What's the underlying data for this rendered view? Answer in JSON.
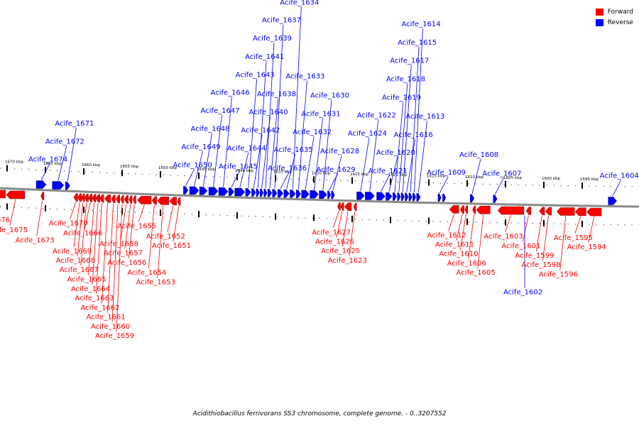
{
  "legend": [
    {
      "label": "Forward",
      "color": "#ff0000"
    },
    {
      "label": "Reverse",
      "color": "#0000ff"
    }
  ],
  "colors": {
    "forward": "#ff0000",
    "reverse": "#0000ff",
    "backbone": "#8a8a8a"
  },
  "caption": "Acidithiobacillus ferrivorans SS3 chromosome, complete genome. - 0..3207552",
  "ruler": [
    {
      "label": "1670 kbp",
      "pos": 1670
    },
    {
      "label": "1665 kbp",
      "pos": 1665
    },
    {
      "label": "1660 kbp",
      "pos": 1660
    },
    {
      "label": "1655 kbp",
      "pos": 1655
    },
    {
      "label": "1650 kbp",
      "pos": 1650
    },
    {
      "label": "1645 kbp",
      "pos": 1645
    },
    {
      "label": "1640 kbp",
      "pos": 1640
    },
    {
      "label": "1635 kbp",
      "pos": 1635
    },
    {
      "label": "1630 kbp",
      "pos": 1630
    },
    {
      "label": "1625 kbp",
      "pos": 1625
    },
    {
      "label": "1620 kbp",
      "pos": 1620
    },
    {
      "label": "1615 kbp",
      "pos": 1615
    },
    {
      "label": "1610 kbp",
      "pos": 1610
    },
    {
      "label": "1605 kbp",
      "pos": 1605
    },
    {
      "label": "1600 kbp",
      "pos": 1600
    },
    {
      "label": "1595 kbp",
      "pos": 1595
    }
  ],
  "reverse_genes": [
    {
      "label": "Acife_1674",
      "start": 1666.2,
      "end": 1664.9
    },
    {
      "label": "Acife_1672",
      "start": 1664.1,
      "end": 1662.6
    },
    {
      "label": "Acife_1671",
      "start": 1662.4,
      "end": 1661.8
    },
    {
      "label": "Acife_1650",
      "start": 1647.0,
      "end": 1646.4
    },
    {
      "label": "Acife_1649",
      "start": 1646.2,
      "end": 1645.0
    },
    {
      "label": "Acife_1648",
      "start": 1644.9,
      "end": 1643.9
    },
    {
      "label": "Acife_1647",
      "start": 1643.7,
      "end": 1642.5
    },
    {
      "label": "Acife_1646",
      "start": 1642.4,
      "end": 1641.2
    },
    {
      "label": "Acife_1645",
      "start": 1641.1,
      "end": 1640.4
    },
    {
      "label": "Acife_1644",
      "start": 1640.3,
      "end": 1639.0
    },
    {
      "label": "Acife_1643",
      "start": 1638.9,
      "end": 1638.2
    },
    {
      "label": "Acife_1642",
      "start": 1638.1,
      "end": 1637.6
    },
    {
      "label": "Acife_1641",
      "start": 1637.5,
      "end": 1637.1
    },
    {
      "label": "Acife_1640",
      "start": 1637.0,
      "end": 1636.6
    },
    {
      "label": "Acife_1639",
      "start": 1636.5,
      "end": 1636.1
    },
    {
      "label": "Acife_1638",
      "start": 1636.0,
      "end": 1635.5
    },
    {
      "label": "Acife_1637",
      "start": 1635.4,
      "end": 1634.8
    },
    {
      "label": "Acife_1636",
      "start": 1634.7,
      "end": 1634.0
    },
    {
      "label": "Acife_1635",
      "start": 1633.9,
      "end": 1633.2
    },
    {
      "label": "Acife_1634",
      "start": 1633.1,
      "end": 1632.4
    },
    {
      "label": "Acife_1633",
      "start": 1632.3,
      "end": 1631.7
    },
    {
      "label": "Acife_1632",
      "start": 1631.6,
      "end": 1630.6
    },
    {
      "label": "Acife_1631",
      "start": 1630.5,
      "end": 1629.4
    },
    {
      "label": "Acife_1630",
      "start": 1629.3,
      "end": 1628.3
    },
    {
      "label": "Acife_1629",
      "start": 1628.2,
      "end": 1627.8
    },
    {
      "label": "Acife_1628",
      "start": 1627.7,
      "end": 1627.3
    },
    {
      "label": "Acife_1624",
      "start": 1624.4,
      "end": 1623.4
    },
    {
      "label": "Acife_1622",
      "start": 1623.3,
      "end": 1622.1
    },
    {
      "label": "Acife_1621",
      "start": 1621.8,
      "end": 1620.7
    },
    {
      "label": "Acife_1620",
      "start": 1620.6,
      "end": 1619.8
    },
    {
      "label": "Acife_1619",
      "start": 1619.7,
      "end": 1619.2
    },
    {
      "label": "Acife_1618",
      "start": 1619.1,
      "end": 1618.7
    },
    {
      "label": "Acife_1617",
      "start": 1618.6,
      "end": 1618.2
    },
    {
      "label": "Acife_1616",
      "start": 1618.1,
      "end": 1617.7
    },
    {
      "label": "Acife_1615",
      "start": 1617.6,
      "end": 1617.2
    },
    {
      "label": "Acife_1614",
      "start": 1617.1,
      "end": 1616.7
    },
    {
      "label": "Acife_1613",
      "start": 1616.6,
      "end": 1616.1
    },
    {
      "label": "Acife_1609",
      "start": 1613.8,
      "end": 1613.4
    },
    {
      "label": "",
      "start": 1613.2,
      "end": 1612.8
    },
    {
      "label": "Acife_1608",
      "start": 1609.6,
      "end": 1609.1
    },
    {
      "label": "Acife_1607",
      "start": 1606.6,
      "end": 1606.1
    },
    {
      "label": "Acife_1604",
      "start": 1591.6,
      "end": 1590.5
    }
  ],
  "forward_genes": [
    {
      "label": "Acife_1676",
      "start": 1672.2,
      "end": 1670.2
    },
    {
      "label": "Acife_1675",
      "start": 1670.1,
      "end": 1667.7
    },
    {
      "label": "Acife_1673",
      "start": 1665.6,
      "end": 1665.2
    },
    {
      "label": "Acife_1670",
      "start": 1661.3,
      "end": 1660.8
    },
    {
      "label": "Acife_1669",
      "start": 1660.8,
      "end": 1660.3
    },
    {
      "label": "Acife_1668",
      "start": 1660.3,
      "end": 1659.9
    },
    {
      "label": "Acife_1667",
      "start": 1659.9,
      "end": 1659.4
    },
    {
      "label": "Acife_1666",
      "start": 1659.4,
      "end": 1658.9
    },
    {
      "label": "Acife_1665",
      "start": 1658.9,
      "end": 1658.4
    },
    {
      "label": "Acife_1664",
      "start": 1658.4,
      "end": 1657.9
    },
    {
      "label": "Acife_1663",
      "start": 1657.9,
      "end": 1657.4
    },
    {
      "label": "Acife_1662",
      "start": 1657.3,
      "end": 1656.5
    },
    {
      "label": "Acife_1661",
      "start": 1656.4,
      "end": 1655.9
    },
    {
      "label": "Acife_1660",
      "start": 1655.8,
      "end": 1655.3
    },
    {
      "label": "Acife_1659",
      "start": 1655.2,
      "end": 1654.8
    },
    {
      "label": "Acife_1658",
      "start": 1654.7,
      "end": 1654.2
    },
    {
      "label": "Acife_1657",
      "start": 1654.1,
      "end": 1653.7
    },
    {
      "label": "Acife_1656",
      "start": 1653.6,
      "end": 1653.2
    },
    {
      "label": "Acife_1655",
      "start": 1653.0,
      "end": 1651.2
    },
    {
      "label": "Acife_1654",
      "start": 1651.1,
      "end": 1650.5
    },
    {
      "label": "Acife_1653",
      "start": 1650.4,
      "end": 1648.9
    },
    {
      "label": "Acife_1652",
      "start": 1648.8,
      "end": 1647.9
    },
    {
      "label": "Acife_1651",
      "start": 1647.8,
      "end": 1647.4
    },
    {
      "label": "Acife_1627",
      "start": 1626.9,
      "end": 1626.6
    },
    {
      "label": "Acife_1626",
      "start": 1626.5,
      "end": 1626.1
    },
    {
      "label": "Acife_1625",
      "start": 1626.0,
      "end": 1625.1
    },
    {
      "label": "Acife_1623",
      "start": 1624.8,
      "end": 1624.5
    },
    {
      "label": "Acife_1612",
      "start": 1612.3,
      "end": 1611.1
    },
    {
      "label": "Acife_1611",
      "start": 1610.9,
      "end": 1610.4
    },
    {
      "label": "Acife_1610",
      "start": 1610.3,
      "end": 1610.0
    },
    {
      "label": "Acife_1606",
      "start": 1609.3,
      "end": 1608.9
    },
    {
      "label": "Acife_1605",
      "start": 1608.8,
      "end": 1607.0
    },
    {
      "label": "Acife_1603",
      "start": 1606.0,
      "end": 1602.6
    },
    {
      "label": "Acife_1601",
      "start": 1602.3,
      "end": 1601.7
    },
    {
      "label": "Acife_1599",
      "start": 1600.6,
      "end": 1599.9
    },
    {
      "label": "Acife_1598",
      "start": 1599.8,
      "end": 1599.0
    },
    {
      "label": "Acife_1596",
      "start": 1598.3,
      "end": 1596.0
    },
    {
      "label": "Acife_1595",
      "start": 1595.9,
      "end": 1594.5
    },
    {
      "label": "Acife_1594",
      "start": 1594.4,
      "end": 1592.5
    }
  ],
  "extra_reverse_labels": [
    {
      "label": "Acife_1602",
      "pos": 1602.5
    }
  ]
}
